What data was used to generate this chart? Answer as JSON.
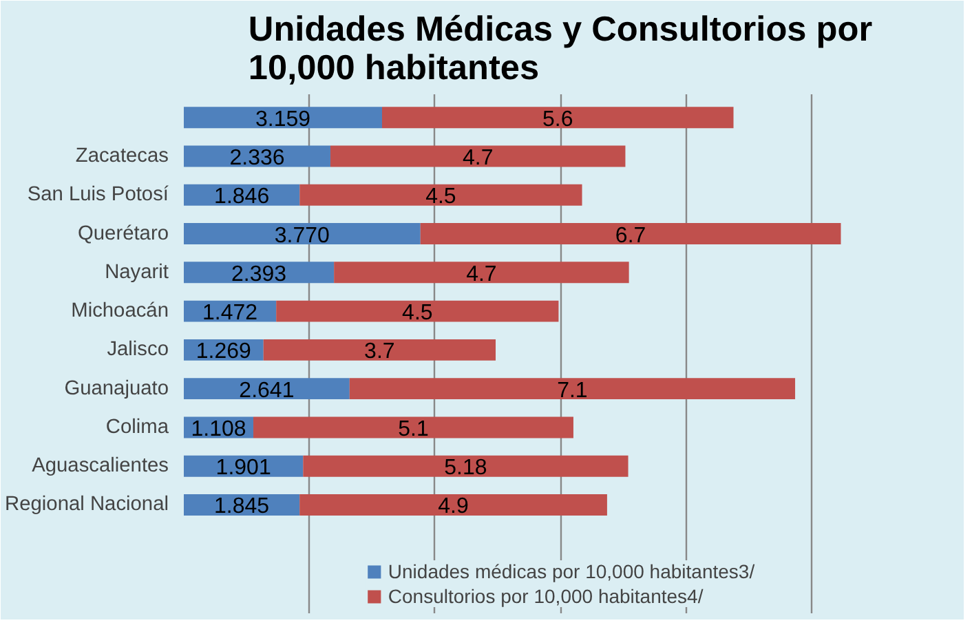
{
  "chart_data": {
    "type": "bar",
    "orientation": "horizontal",
    "stacked": true,
    "title": "Unidades Médicas y Consultorios por 10,000 habitantes",
    "categories": [
      null,
      "Zacatecas",
      "San Luis Potosí",
      "Querétaro",
      "Nayarit",
      "Michoacán",
      "Jalisco",
      "Guanajuato",
      "Colima",
      "Aguascalientes",
      "Regional Nacional"
    ],
    "series": [
      {
        "name": "Unidades médicas por 10,000 habitantes3/",
        "color": "#4f81bd",
        "values": [
          3.159,
          2.336,
          1.846,
          3.77,
          2.393,
          1.472,
          1.269,
          2.641,
          1.108,
          1.901,
          1.845
        ],
        "value_labels": [
          "3.159",
          "2.336",
          "1.846",
          "3.770",
          "2.393",
          "1.472",
          "1.269",
          "2.641",
          "1.108",
          "1.901",
          "1.845"
        ]
      },
      {
        "name": "Consultorios por 10,000 habitantes4/",
        "color": "#c0504d",
        "values": [
          5.6,
          4.7,
          4.5,
          6.7,
          4.7,
          4.5,
          3.7,
          7.1,
          5.1,
          5.18,
          4.9
        ],
        "value_labels": [
          "5.6",
          "4.7",
          "4.5",
          "6.7",
          "4.7",
          "4.5",
          "3.7",
          "7.1",
          "5.1",
          "5.18",
          "4.9"
        ]
      }
    ],
    "xlim": [
      0,
      12
    ],
    "xticks": [
      {
        "value": 0,
        "label": null
      },
      {
        "value": 2,
        "label": null
      },
      {
        "value": 4,
        "label": null
      },
      {
        "value": 6,
        "label": null
      },
      {
        "value": 8,
        "label": null
      },
      {
        "value": 10,
        "label": null
      },
      {
        "value": 12,
        "label": null
      }
    ],
    "tick_labels": "y",
    "grid": "x",
    "legend": "bottom"
  }
}
